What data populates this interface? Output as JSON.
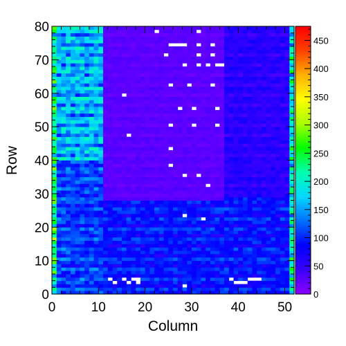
{
  "chart_data": {
    "type": "heatmap",
    "xlabel": "Column",
    "ylabel": "Row",
    "xlim": [
      0,
      52
    ],
    "ylim": [
      0,
      80
    ],
    "zlim": [
      0,
      475
    ],
    "x_ticks": [
      0,
      10,
      20,
      30,
      40,
      50
    ],
    "y_ticks": [
      0,
      10,
      20,
      30,
      40,
      50,
      60,
      70,
      80
    ],
    "z_ticks": [
      0,
      50,
      100,
      150,
      200,
      250,
      300,
      350,
      400,
      450
    ],
    "colormap": "rainbow",
    "colormap_stops": [
      "#8a00ff",
      "#3a00ff",
      "#0000ff",
      "#0070ff",
      "#00d8ff",
      "#00ffb0",
      "#00ff00",
      "#a8ff00",
      "#ffff00",
      "#ffb000",
      "#ff4000",
      "#ff0000"
    ],
    "empty_cell_color": "#ffffff",
    "regions_approx": [
      {
        "cols": [
          0,
          1
        ],
        "rows": [
          0,
          80
        ],
        "value": 230
      },
      {
        "cols": [
          1,
          11
        ],
        "rows": [
          40,
          80
        ],
        "value": 160
      },
      {
        "cols": [
          1,
          11
        ],
        "rows": [
          0,
          40
        ],
        "value": 110
      },
      {
        "cols": [
          11,
          37
        ],
        "rows": [
          28,
          80
        ],
        "value": 25
      },
      {
        "cols": [
          37,
          51
        ],
        "rows": [
          30,
          80
        ],
        "value": 55
      },
      {
        "cols": [
          11,
          51
        ],
        "rows": [
          0,
          28
        ],
        "value": 90
      },
      {
        "cols": [
          51,
          52
        ],
        "rows": [
          0,
          80
        ],
        "value": 200
      }
    ],
    "empty_cells": [
      [
        22,
        78
      ],
      [
        31,
        78
      ],
      [
        25,
        74
      ],
      [
        26,
        74
      ],
      [
        27,
        74
      ],
      [
        28,
        74
      ],
      [
        31,
        74
      ],
      [
        34,
        74
      ],
      [
        24,
        71
      ],
      [
        31,
        71
      ],
      [
        34,
        71
      ],
      [
        28,
        68
      ],
      [
        31,
        68
      ],
      [
        33,
        68
      ],
      [
        35,
        68
      ],
      [
        36,
        68
      ],
      [
        25,
        62
      ],
      [
        29,
        62
      ],
      [
        34,
        62
      ],
      [
        15,
        59
      ],
      [
        27,
        55
      ],
      [
        30,
        55
      ],
      [
        35,
        55
      ],
      [
        25,
        50
      ],
      [
        30,
        50
      ],
      [
        35,
        50
      ],
      [
        16,
        47
      ],
      [
        25,
        43
      ],
      [
        25,
        38
      ],
      [
        28,
        35
      ],
      [
        31,
        35
      ],
      [
        33,
        32
      ],
      [
        28,
        23
      ],
      [
        32,
        22
      ],
      [
        12,
        4
      ],
      [
        13,
        3
      ],
      [
        15,
        4
      ],
      [
        16,
        3
      ],
      [
        17,
        4
      ],
      [
        18,
        3
      ],
      [
        18,
        4
      ],
      [
        28,
        2
      ],
      [
        38,
        4
      ],
      [
        39,
        3
      ],
      [
        40,
        3
      ],
      [
        41,
        3
      ],
      [
        42,
        4
      ],
      [
        43,
        4
      ],
      [
        44,
        4
      ]
    ]
  }
}
